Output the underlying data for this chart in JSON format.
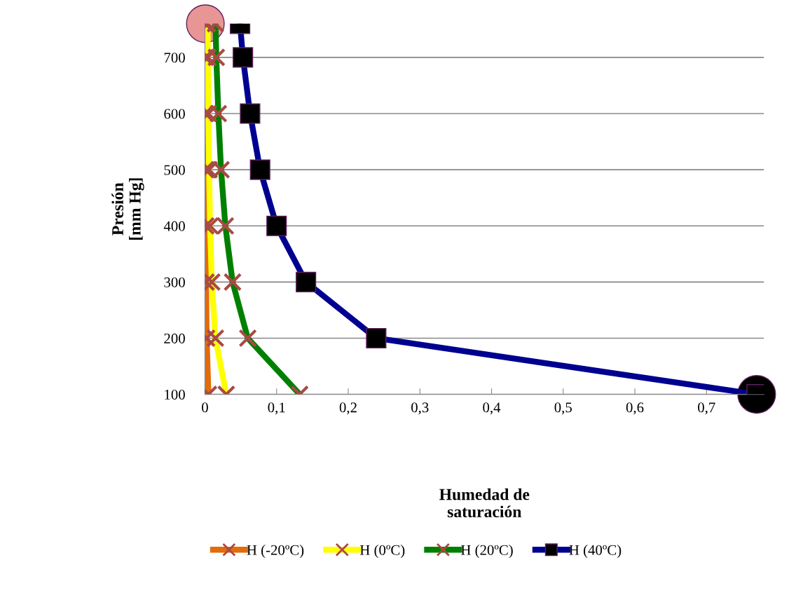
{
  "chart_data": {
    "type": "line",
    "xlabel": "Humedad de\nsaturación",
    "ylabel": "Presión\n[mm Hg]",
    "xlim": [
      0,
      0.78
    ],
    "xticks": [
      {
        "value": 0,
        "label": "0"
      },
      {
        "value": 0.1,
        "label": "0,1"
      },
      {
        "value": 0.2,
        "label": "0,2"
      },
      {
        "value": 0.3,
        "label": "0,3"
      },
      {
        "value": 0.4,
        "label": "0,4"
      },
      {
        "value": 0.5,
        "label": "0,5"
      },
      {
        "value": 0.6,
        "label": "0,6"
      },
      {
        "value": 0.7,
        "label": "0,7"
      }
    ],
    "ylim": [
      100,
      760
    ],
    "yticks": [
      100,
      200,
      300,
      400,
      500,
      600,
      700
    ],
    "grid": "y",
    "legend": "bottom",
    "series": [
      {
        "name": "H (-20ºC)",
        "color": "#e36c0a",
        "marker": "cross",
        "x": [
          0.0006,
          0.0007,
          0.0008,
          0.001,
          0.0012,
          0.0016,
          0.0024,
          0.0049
        ],
        "values": [
          760,
          700,
          600,
          500,
          400,
          300,
          200,
          100
        ]
      },
      {
        "name": "H (0ºC)",
        "color": "#ffff00",
        "marker": "cross",
        "x": [
          0.0038,
          0.0041,
          0.0048,
          0.0058,
          0.0072,
          0.0096,
          0.0146,
          0.0298
        ],
        "values": [
          760,
          700,
          600,
          500,
          400,
          300,
          200,
          100
        ]
      },
      {
        "name": "H (20ºC)",
        "color": "#008000",
        "marker": "cross",
        "x": [
          0.0147,
          0.0159,
          0.0187,
          0.0225,
          0.0285,
          0.0386,
          0.0598,
          0.1323
        ],
        "values": [
          760,
          700,
          600,
          500,
          400,
          300,
          200,
          100
        ]
      },
      {
        "name": "H (40ºC)",
        "color": "#000090",
        "marker": "square",
        "x": [
          0.049,
          0.053,
          0.063,
          0.077,
          0.1,
          0.141,
          0.239,
          0.77
        ],
        "values": [
          760,
          700,
          600,
          500,
          400,
          300,
          200,
          100
        ]
      },
      {
        "type": "scatter",
        "color": "#e89595",
        "marker": "circle",
        "x": [
          0.0006
        ],
        "values": [
          760
        ]
      },
      {
        "type": "scatter",
        "color": "#000000",
        "marker": "circle",
        "x": [
          0.77
        ],
        "values": [
          100
        ]
      }
    ]
  }
}
